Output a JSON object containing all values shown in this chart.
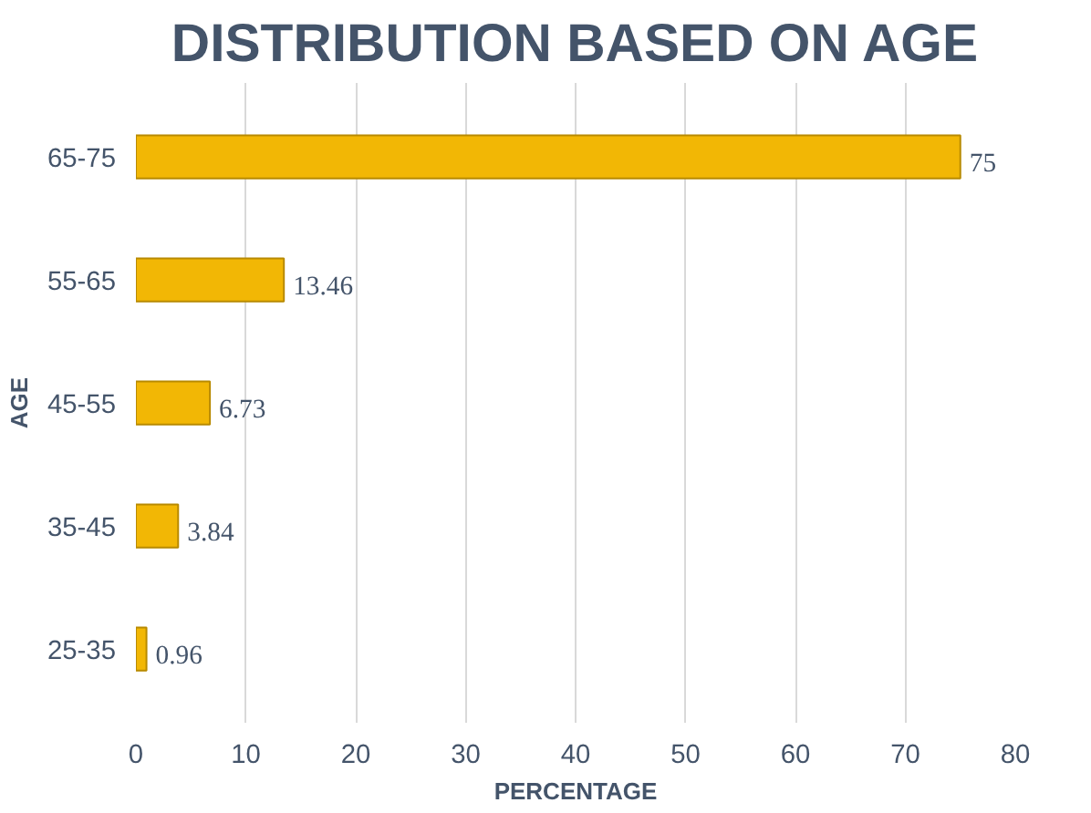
{
  "chart_data": {
    "type": "bar",
    "orientation": "horizontal",
    "title": "DISTRIBUTION BASED ON AGE",
    "xlabel": "PERCENTAGE",
    "ylabel": "AGE",
    "categories": [
      "65-75",
      "55-65",
      "45-55",
      "35-45",
      "25-35"
    ],
    "values": [
      75,
      13.46,
      6.73,
      3.84,
      0.96
    ],
    "color": "#f2b705",
    "xlim": [
      0,
      80
    ],
    "xticks": [
      0,
      10,
      20,
      30,
      40,
      50,
      60,
      70,
      80
    ],
    "grid": "x",
    "data_labels": true
  }
}
